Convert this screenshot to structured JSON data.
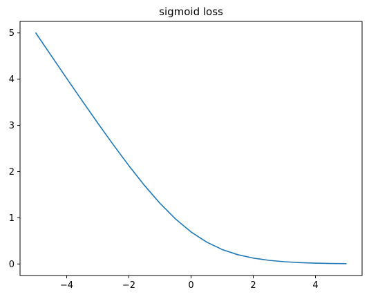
{
  "chart_data": {
    "type": "line",
    "title": "sigmoid loss",
    "xlabel": "",
    "ylabel": "",
    "xlim": [
      -5.5,
      5.5
    ],
    "ylim": [
      -0.25,
      5.25
    ],
    "x_ticks": [
      -4,
      -2,
      0,
      2,
      4
    ],
    "x_tick_labels": [
      "−4",
      "−2",
      "0",
      "2",
      "4"
    ],
    "y_ticks": [
      0,
      1,
      2,
      3,
      4,
      5
    ],
    "y_tick_labels": [
      "0",
      "1",
      "2",
      "3",
      "4",
      "5"
    ],
    "grid": false,
    "series": [
      {
        "color": "#1f77b4",
        "x": [
          -5,
          -4.5,
          -4,
          -3.5,
          -3,
          -2.5,
          -2,
          -1.5,
          -1,
          -0.5,
          0,
          0.5,
          1,
          1.5,
          2,
          2.5,
          3,
          3.5,
          4,
          4.5,
          5
        ],
        "y": [
          5.007,
          4.511,
          4.018,
          3.53,
          3.049,
          2.579,
          2.127,
          1.701,
          1.313,
          0.974,
          0.693,
          0.474,
          0.313,
          0.201,
          0.127,
          0.079,
          0.049,
          0.03,
          0.018,
          0.011,
          0.007
        ]
      }
    ]
  }
}
